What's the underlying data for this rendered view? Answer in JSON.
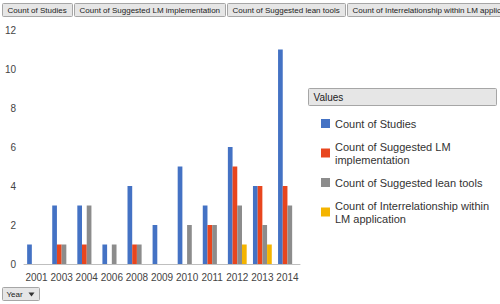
{
  "chart_data": {
    "type": "bar",
    "categories": [
      "2001",
      "2003",
      "2004",
      "2006",
      "2008",
      "2009",
      "2010",
      "2011",
      "2012",
      "2013",
      "2014"
    ],
    "series": [
      {
        "name": "Count of Studies",
        "color": "#4472c4",
        "values": [
          1,
          3,
          3,
          1,
          4,
          2,
          5,
          3,
          6,
          4,
          11
        ]
      },
      {
        "name": "Count of Suggested LM implementation",
        "color": "#e8461e",
        "values": [
          null,
          1,
          1,
          null,
          1,
          null,
          null,
          2,
          5,
          4,
          4
        ]
      },
      {
        "name": "Count of Suggested lean tools",
        "color": "#8c8c8c",
        "values": [
          null,
          1,
          3,
          1,
          1,
          null,
          2,
          2,
          3,
          2,
          3
        ]
      },
      {
        "name": "Count of Interrelationship within LM application",
        "color": "#f4b400",
        "values": [
          null,
          null,
          null,
          null,
          null,
          null,
          null,
          null,
          1,
          1,
          null
        ]
      }
    ],
    "ylim": [
      0,
      12
    ],
    "yticks": [
      0,
      2,
      4,
      6,
      8,
      10,
      12
    ],
    "grid": false,
    "legend": "right",
    "legend_title": "Values",
    "xlabel": "Year"
  }
}
